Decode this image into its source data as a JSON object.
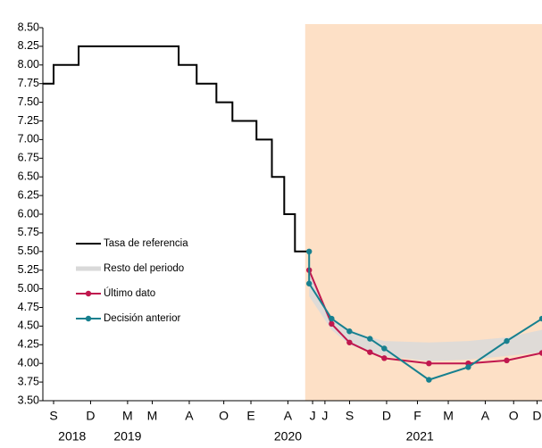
{
  "chart_data": {
    "type": "line",
    "xlim": [
      7.13,
      47.6
    ],
    "ylim": [
      3.5,
      8.5
    ],
    "forecast_start": 28.4,
    "shade_color": "#fde0c6",
    "yticks": [
      {
        "value": 3.5,
        "label": "3.50"
      },
      {
        "value": 3.75,
        "label": "3.75"
      },
      {
        "value": 4.0,
        "label": "4.00"
      },
      {
        "value": 4.25,
        "label": "4.25"
      },
      {
        "value": 4.5,
        "label": "4.50"
      },
      {
        "value": 4.75,
        "label": "4.75"
      },
      {
        "value": 5.0,
        "label": "5.00"
      },
      {
        "value": 5.25,
        "label": "5.25"
      },
      {
        "value": 5.5,
        "label": "5.50"
      },
      {
        "value": 5.75,
        "label": "5.75"
      },
      {
        "value": 6.0,
        "label": "6.00"
      },
      {
        "value": 6.25,
        "label": "6.25"
      },
      {
        "value": 6.5,
        "label": "6.50"
      },
      {
        "value": 6.75,
        "label": "6.75"
      },
      {
        "value": 7.0,
        "label": "7.00"
      },
      {
        "value": 7.25,
        "label": "7.25"
      },
      {
        "value": 7.5,
        "label": "7.50"
      },
      {
        "value": 7.75,
        "label": "7.75"
      },
      {
        "value": 8.0,
        "label": "8.00"
      },
      {
        "value": 8.25,
        "label": "8.25"
      },
      {
        "value": 8.5,
        "label": "8.50"
      }
    ],
    "xticks": [
      {
        "value": 8,
        "label": "S"
      },
      {
        "value": 11,
        "label": "D"
      },
      {
        "value": 14,
        "label": "M"
      },
      {
        "value": 16,
        "label": "M"
      },
      {
        "value": 19,
        "label": "A"
      },
      {
        "value": 21.8,
        "label": "O"
      },
      {
        "value": 24,
        "label": "E"
      },
      {
        "value": 27,
        "label": "A"
      },
      {
        "value": 29,
        "label": "J"
      },
      {
        "value": 30,
        "label": "J"
      },
      {
        "value": 32,
        "label": "S"
      },
      {
        "value": 35,
        "label": "D"
      },
      {
        "value": 37.5,
        "label": "F"
      },
      {
        "value": 40,
        "label": "M"
      },
      {
        "value": 43,
        "label": "A"
      },
      {
        "value": 45.3,
        "label": "O"
      },
      {
        "value": 47.2,
        "label": "D"
      }
    ],
    "year_ticks": [
      {
        "value": 9.5,
        "label": "2018"
      },
      {
        "value": 14,
        "label": "2019"
      },
      {
        "value": 27,
        "label": "2020"
      },
      {
        "value": 37.7,
        "label": "2021"
      }
    ],
    "series": [
      {
        "name": "Tasa de referencia",
        "color": "#000000",
        "drawstyle": "steps-post",
        "x": [
          7.13,
          8,
          10.03,
          18.14,
          19.6,
          21.2,
          22.5,
          24.45,
          25.7,
          26.7,
          27.57,
          28.65
        ],
        "values": [
          7.75,
          8.0,
          8.25,
          8.0,
          7.75,
          7.5,
          7.25,
          7.0,
          6.5,
          6.0,
          5.5,
          5.5
        ]
      },
      {
        "name": "Resto del periodo",
        "color": "#d9d9d9",
        "drawstyle": "band",
        "x": [
          28.72,
          30.54,
          31.99,
          33.65,
          34.81,
          38.43,
          41.62,
          44.74,
          47.6
        ],
        "lower": [
          4.9,
          4.45,
          4.25,
          4.15,
          4.1,
          4.03,
          4.05,
          4.1,
          4.15
        ],
        "upper": [
          5.2,
          4.6,
          4.45,
          4.35,
          4.3,
          4.28,
          4.3,
          4.35,
          4.45
        ]
      },
      {
        "name": "Último dato",
        "color": "#c0174e",
        "drawstyle": "markers",
        "x": [
          28.72,
          30.54,
          31.99,
          33.65,
          34.81,
          38.43,
          41.62,
          44.74,
          47.6
        ],
        "values": [
          5.25,
          4.53,
          4.28,
          4.15,
          4.07,
          4.0,
          4.0,
          4.04,
          4.14
        ]
      },
      {
        "name": "Decisión anterior",
        "color": "#17808f",
        "drawstyle": "markers",
        "x": [
          28.72,
          28.72,
          30.54,
          31.99,
          33.65,
          34.81,
          38.43,
          41.62,
          44.74,
          47.6
        ],
        "values": [
          5.5,
          5.07,
          4.6,
          4.43,
          4.33,
          4.2,
          3.78,
          3.95,
          4.3,
          4.6
        ]
      }
    ]
  }
}
